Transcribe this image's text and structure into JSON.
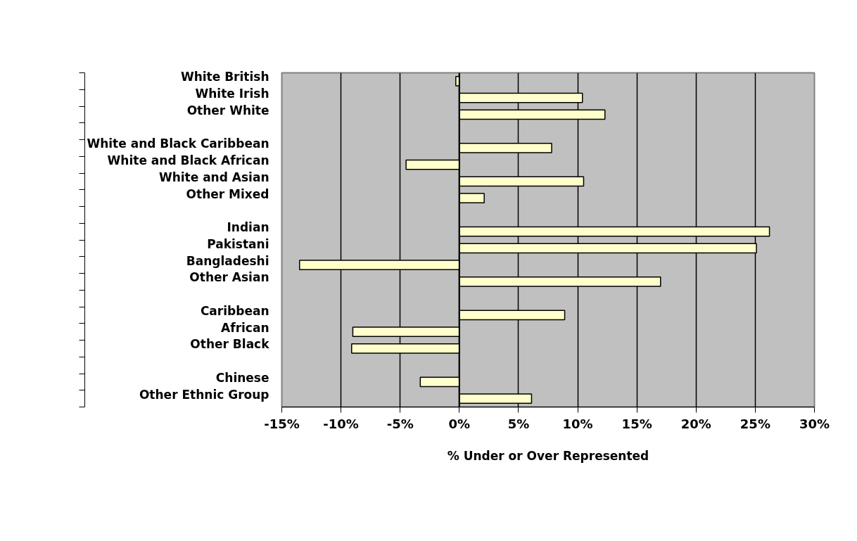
{
  "chart_data": {
    "type": "bar",
    "orientation": "horizontal",
    "xlabel": "% Under or Over Represented",
    "categories": [
      "White British",
      "White Irish",
      "Other White",
      null,
      "White and Black Caribbean",
      "White and Black African",
      "White and Asian",
      "Other Mixed",
      null,
      "Indian",
      "Pakistani",
      "Bangladeshi",
      "Other Asian",
      null,
      "Caribbean",
      "African",
      "Other Black",
      null,
      "Chinese",
      "Other Ethnic Group"
    ],
    "values": [
      -0.3,
      10.4,
      12.3,
      null,
      7.8,
      -4.5,
      10.5,
      2.1,
      null,
      26.2,
      25.1,
      -13.5,
      17.0,
      null,
      8.9,
      -9.0,
      -9.1,
      null,
      -3.3,
      6.1
    ],
    "color": "#ffffcc",
    "xlim": [
      -15,
      30
    ],
    "xticks": [
      {
        "value": -15,
        "label": "-15%"
      },
      {
        "value": -10,
        "label": "-10%"
      },
      {
        "value": -5,
        "label": "-5%"
      },
      {
        "value": 0,
        "label": "0%"
      },
      {
        "value": 5,
        "label": "5%"
      },
      {
        "value": 10,
        "label": "10%"
      },
      {
        "value": 15,
        "label": "15%"
      },
      {
        "value": 20,
        "label": "20%"
      },
      {
        "value": 25,
        "label": "25%"
      },
      {
        "value": 30,
        "label": "30%"
      }
    ],
    "grid": "x"
  }
}
